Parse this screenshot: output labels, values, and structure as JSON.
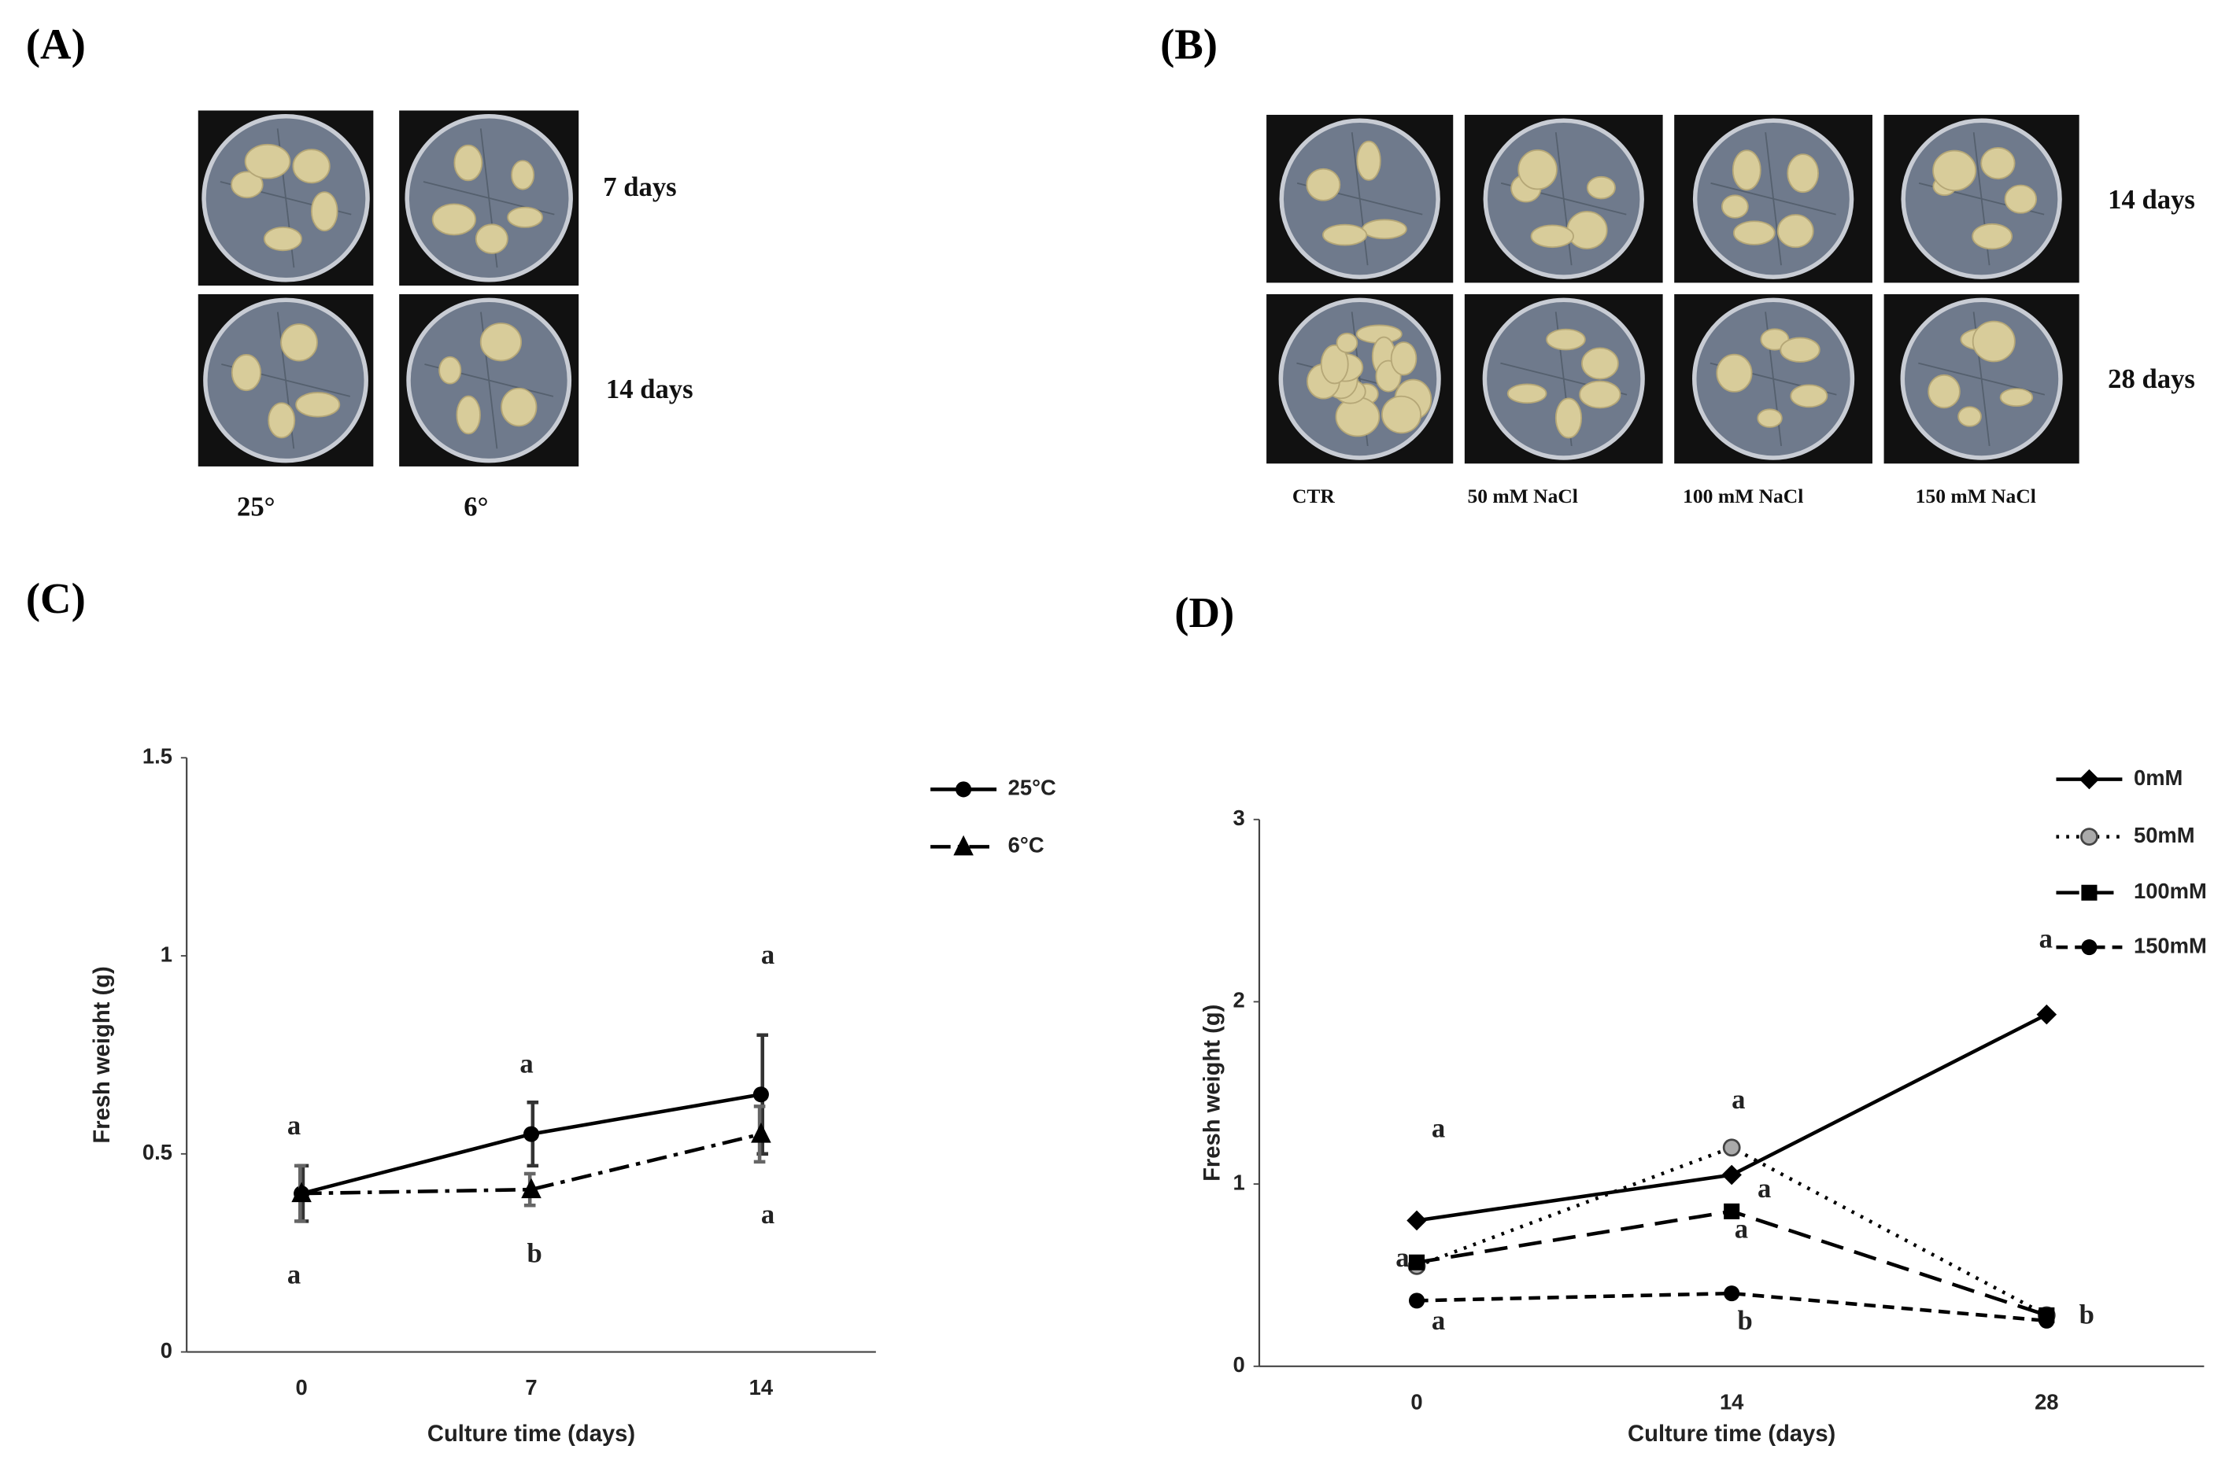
{
  "panels": {
    "A": {
      "label": "(A)",
      "rows": [
        "7 days",
        "14 days"
      ],
      "columns": [
        "25°",
        "6°"
      ]
    },
    "B": {
      "label": "(B)",
      "rows": [
        "14 days",
        "28 days"
      ],
      "columns": [
        "CTR",
        "50 mM NaCl",
        "100 mM NaCl",
        "150 mM NaCl"
      ]
    },
    "C": {
      "label": "(C)"
    },
    "D": {
      "label": "(D)"
    }
  },
  "chart_data": [
    {
      "type": "line",
      "x_label": "Culture time (days)",
      "y_label": "Fresh weight (g)",
      "categories": [
        "0",
        "7",
        "14"
      ],
      "ylim": [
        0,
        1.5
      ],
      "yticks": [
        0,
        0.5,
        1,
        1.5
      ],
      "series": [
        {
          "name": "25°C",
          "color": "#000000",
          "line_style": "solid",
          "marker": "circle",
          "values": [
            0.4,
            0.55,
            0.65
          ],
          "errors": [
            0.07,
            0.08,
            0.15
          ],
          "letters": [
            "a",
            "a",
            "a"
          ]
        },
        {
          "name": "6°C",
          "color": "#000000",
          "line_style": "dashdot",
          "marker": "triangle",
          "values": [
            0.4,
            0.41,
            0.55
          ],
          "errors": [
            0.07,
            0.04,
            0.07
          ],
          "letters": [
            "a",
            "b",
            "a"
          ]
        }
      ]
    },
    {
      "type": "line",
      "x_label": "Culture time (days)",
      "y_label": "Fresh weight  (g)",
      "categories": [
        "0",
        "14",
        "28"
      ],
      "ylim": [
        0,
        3
      ],
      "yticks": [
        0,
        1,
        2,
        3
      ],
      "series": [
        {
          "name": "0mM",
          "color": "#000000",
          "line_style": "solid",
          "marker": "diamond",
          "values": [
            0.8,
            1.05,
            1.93
          ]
        },
        {
          "name": "50mM",
          "color": "#000000",
          "line_style": "dotted",
          "marker": "circle-gray",
          "values": [
            0.55,
            1.2,
            0.28
          ]
        },
        {
          "name": "100mM",
          "color": "#000000",
          "line_style": "longdash",
          "marker": "square",
          "values": [
            0.57,
            0.85,
            0.28
          ]
        },
        {
          "name": "150mM",
          "color": "#000000",
          "line_style": "dashed",
          "marker": "circle",
          "values": [
            0.36,
            0.4,
            0.25
          ]
        }
      ],
      "annotations": [
        "a",
        "a",
        "a",
        "a",
        "a",
        "a",
        "b",
        "a",
        "b"
      ]
    }
  ]
}
